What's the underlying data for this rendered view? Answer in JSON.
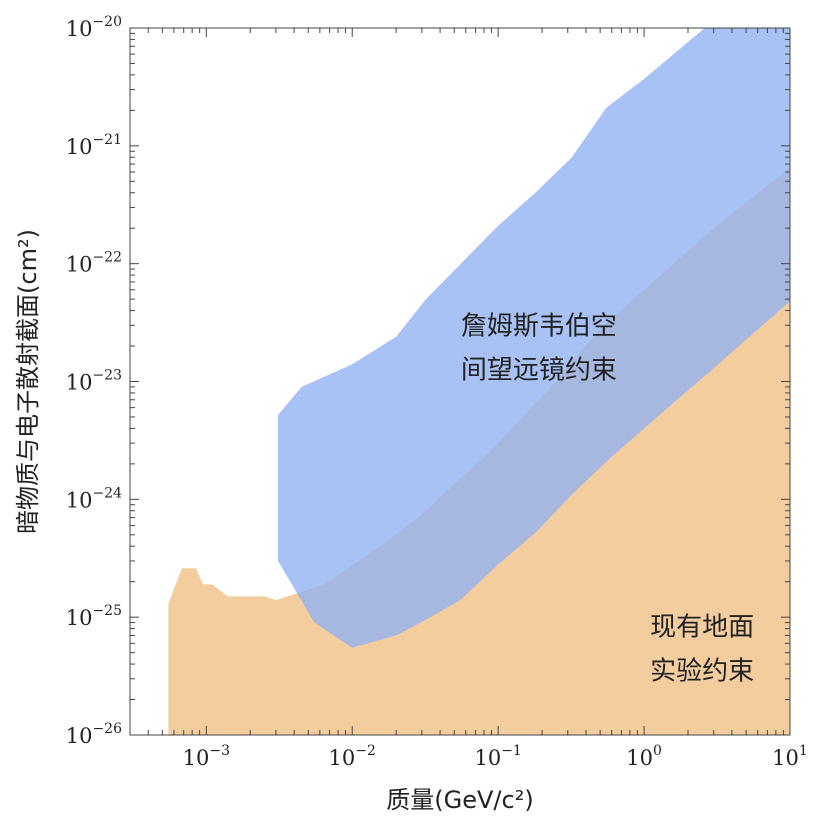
{
  "chart_data": {
    "type": "area",
    "title": "",
    "xlabel": "质量(GeV/c²)",
    "ylabel": "暗物质与电子散射截面(cm²)",
    "x_scale": "log",
    "y_scale": "log",
    "xlim": [
      0.0003,
      10
    ],
    "ylim": [
      1e-26,
      1e-20
    ],
    "grid": false,
    "x_ticks": [
      {
        "base": "10",
        "exp": "−3",
        "value": 0.001
      },
      {
        "base": "10",
        "exp": "−2",
        "value": 0.01
      },
      {
        "base": "10",
        "exp": "−1",
        "value": 0.1
      },
      {
        "base": "10",
        "exp": "0",
        "value": 1
      },
      {
        "base": "10",
        "exp": "1",
        "value": 10
      }
    ],
    "y_ticks": [
      {
        "base": "10",
        "exp": "−26",
        "value": 1e-26
      },
      {
        "base": "10",
        "exp": "−25",
        "value": 1e-25
      },
      {
        "base": "10",
        "exp": "−24",
        "value": 1e-24
      },
      {
        "base": "10",
        "exp": "−23",
        "value": 1e-23
      },
      {
        "base": "10",
        "exp": "−22",
        "value": 1e-22
      },
      {
        "base": "10",
        "exp": "−21",
        "value": 1e-21
      },
      {
        "base": "10",
        "exp": "−20",
        "value": 1e-20
      }
    ],
    "series": [
      {
        "name": "现有地面实验约束",
        "color": "#f2c48d",
        "opacity": 0.85,
        "boundary": [
          [
            0.00055,
            1.3e-25
          ],
          [
            0.00068,
            2.6e-25
          ],
          [
            0.00085,
            2.6e-25
          ],
          [
            0.00095,
            1.9e-25
          ],
          [
            0.0011,
            1.9e-25
          ],
          [
            0.0014,
            1.5e-25
          ],
          [
            0.0025,
            1.5e-25
          ],
          [
            0.003,
            1.4e-25
          ],
          [
            0.0065,
            1.9e-25
          ],
          [
            0.012,
            3.2e-25
          ],
          [
            0.02,
            5e-25
          ],
          [
            0.032,
            8e-25
          ],
          [
            0.055,
            1.5e-24
          ],
          [
            0.09,
            2.6e-24
          ],
          [
            0.14,
            4.7e-24
          ],
          [
            0.25,
            1e-23
          ],
          [
            0.5,
            2.8e-23
          ],
          [
            1,
            6e-23
          ],
          [
            3,
            2e-22
          ],
          [
            10,
            6.5e-22
          ]
        ]
      },
      {
        "name": "詹姆斯韦伯空间望远镜约束",
        "color": "#8fb1f2",
        "opacity": 0.78,
        "upper": [
          [
            0.0031,
            5.2e-24
          ],
          [
            0.0045,
            9e-24
          ],
          [
            0.01,
            1.4e-23
          ],
          [
            0.02,
            2.4e-23
          ],
          [
            0.032,
            5e-23
          ],
          [
            0.1,
            2.1e-22
          ],
          [
            0.18,
            4e-22
          ],
          [
            0.32,
            8e-22
          ],
          [
            0.55,
            2.1e-21
          ],
          [
            1,
            3.7e-21
          ],
          [
            2.6,
            1e-20
          ],
          [
            10,
            1e-20
          ]
        ],
        "lower": [
          [
            0.0031,
            3e-25
          ],
          [
            0.0055,
            9e-26
          ],
          [
            0.01,
            5.5e-26
          ],
          [
            0.02,
            7e-26
          ],
          [
            0.032,
            9.5e-26
          ],
          [
            0.055,
            1.4e-25
          ],
          [
            0.1,
            2.8e-25
          ],
          [
            0.18,
            5.2e-25
          ],
          [
            0.32,
            1.1e-24
          ],
          [
            0.6,
            2.3e-24
          ],
          [
            1,
            4e-24
          ],
          [
            3,
            1.3e-23
          ],
          [
            10,
            4.8e-23
          ]
        ]
      }
    ],
    "annotations": [
      {
        "lines": [
          "詹姆斯韦伯空",
          "间望远镜约束"
        ],
        "x": 0.19,
        "y": 2.5e-23
      },
      {
        "lines": [
          "现有地面",
          "实验约束"
        ],
        "x": 2.5,
        "y": 7e-26
      }
    ]
  }
}
